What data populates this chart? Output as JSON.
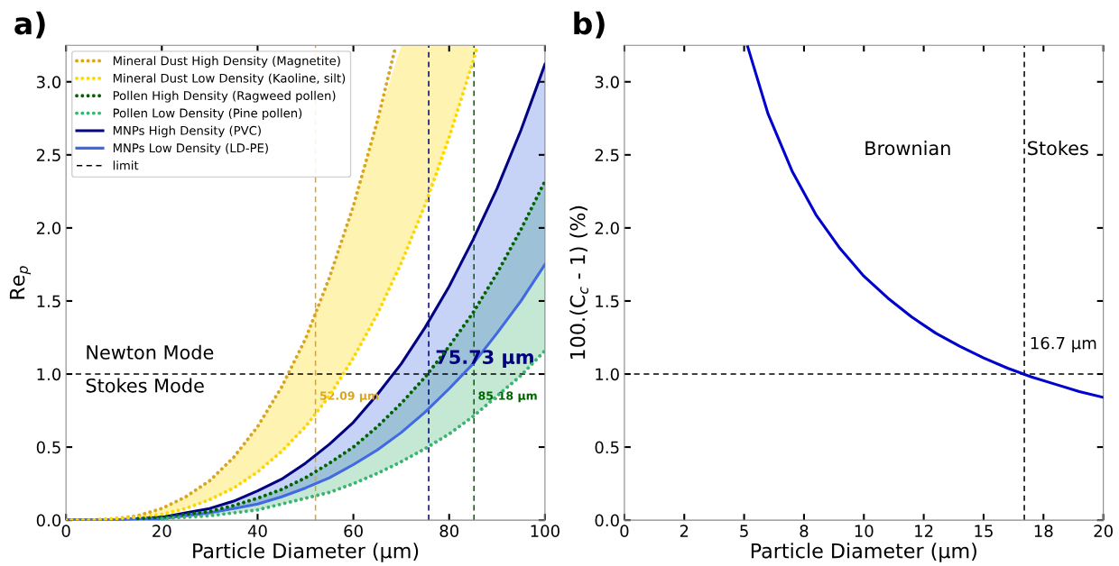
{
  "chart_data": [
    {
      "type": "line",
      "title": "a)",
      "xlabel": "Particle Diameter (μm)",
      "ylabel": "Re$_{p}$",
      "xlim": [
        0,
        100
      ],
      "ylim": [
        0,
        3.25
      ],
      "xticks": [
        0,
        20,
        40,
        60,
        80,
        100
      ],
      "yticks": [
        {
          "value": 0,
          "label": "0.0"
        },
        {
          "value": 0.5,
          "label": "0.5"
        },
        {
          "value": 1,
          "label": "1.0"
        },
        {
          "value": 1.5,
          "label": "1.5"
        },
        {
          "value": 2,
          "label": "2.0"
        },
        {
          "value": 2.5,
          "label": "2.5"
        },
        {
          "value": 3,
          "label": "3.0"
        }
      ],
      "legend": "top left",
      "series": [
        {
          "name": "Mineral Dust High Density (Magnetite)",
          "color": "#daa520",
          "line_style": "dotted",
          "x": [
            0,
            5,
            10,
            15,
            20,
            25,
            30,
            35,
            40,
            45,
            50,
            55,
            60,
            65,
            68.8
          ],
          "values": [
            0,
            0,
            0.01,
            0.03,
            0.08,
            0.16,
            0.27,
            0.43,
            0.64,
            0.91,
            1.24,
            1.66,
            2.15,
            2.73,
            3.24
          ]
        },
        {
          "name": "Mineral Dust Low Density (Kaoline, silt)",
          "color": "#ffd700",
          "line_style": "dotted",
          "x": [
            0,
            5,
            10,
            15,
            20,
            25,
            30,
            35,
            40,
            45,
            50,
            55,
            60,
            65,
            70,
            75,
            80,
            85,
            85.7
          ],
          "values": [
            0,
            0,
            0.01,
            0.02,
            0.04,
            0.08,
            0.14,
            0.22,
            0.33,
            0.47,
            0.64,
            0.85,
            1.11,
            1.41,
            1.76,
            2.16,
            2.62,
            3.14,
            3.22
          ],
          "lower": [
            0,
            0,
            0.01,
            0.02,
            0.04,
            0.08,
            0.14,
            0.22,
            0.33,
            0.47,
            0.64,
            0.85,
            1.11,
            1.41,
            1.76,
            2.16,
            2.62,
            3.14,
            3.22
          ],
          "upper": [
            0,
            0,
            0.01,
            0.03,
            0.08,
            0.16,
            0.27,
            0.43,
            0.64,
            0.91,
            1.24,
            1.66,
            2.15,
            2.73,
            3.25,
            3.25,
            3.25,
            3.25,
            3.25
          ]
        },
        {
          "name": "Pollen High Density (Ragweed pollen)",
          "color": "#006400",
          "line_style": "dotted",
          "x": [
            15,
            20,
            25,
            30,
            35,
            40,
            45,
            50,
            55,
            60,
            65,
            70,
            75,
            80,
            85,
            90,
            95,
            100
          ],
          "values": [
            0.01,
            0.02,
            0.04,
            0.06,
            0.1,
            0.15,
            0.21,
            0.29,
            0.39,
            0.5,
            0.64,
            0.8,
            0.98,
            1.19,
            1.42,
            1.69,
            1.99,
            2.32
          ]
        },
        {
          "name": "Pollen Low Density (Pine pollen)",
          "color": "#3cb371",
          "line_style": "dotted",
          "x": [
            20,
            25,
            30,
            35,
            40,
            45,
            50,
            55,
            60,
            65,
            70,
            75,
            80,
            85,
            90,
            95,
            100
          ],
          "values": [
            0.01,
            0.02,
            0.03,
            0.05,
            0.07,
            0.11,
            0.15,
            0.19,
            0.25,
            0.32,
            0.4,
            0.49,
            0.59,
            0.71,
            0.85,
            0.99,
            1.16
          ],
          "lower": [
            0.01,
            0.02,
            0.03,
            0.05,
            0.07,
            0.11,
            0.15,
            0.19,
            0.25,
            0.32,
            0.4,
            0.49,
            0.59,
            0.71,
            0.85,
            0.99,
            1.16
          ],
          "upper": [
            0.02,
            0.04,
            0.06,
            0.1,
            0.15,
            0.21,
            0.29,
            0.39,
            0.5,
            0.64,
            0.8,
            0.98,
            1.19,
            1.42,
            1.69,
            1.99,
            2.32
          ]
        },
        {
          "name": "MNPs High Density (PVC)",
          "color": "#000080",
          "line_style": "solid",
          "x": [
            0,
            5,
            10,
            15,
            20,
            25,
            30,
            35,
            40,
            45,
            50,
            55,
            60,
            65,
            70,
            75,
            80,
            85,
            90,
            95,
            100
          ],
          "values": [
            0,
            0,
            0,
            0.01,
            0.02,
            0.05,
            0.08,
            0.13,
            0.2,
            0.28,
            0.39,
            0.52,
            0.67,
            0.86,
            1.07,
            1.32,
            1.6,
            1.92,
            2.27,
            2.67,
            3.12
          ]
        },
        {
          "name": "MNPs Low Density (LD-PE)",
          "color": "#4169e1",
          "line_style": "solid",
          "x": [
            0,
            5,
            10,
            15,
            20,
            25,
            30,
            35,
            40,
            45,
            50,
            55,
            60,
            65,
            70,
            75,
            80,
            85,
            90,
            95,
            100
          ],
          "values": [
            0,
            0,
            0,
            0.01,
            0.01,
            0.03,
            0.05,
            0.08,
            0.11,
            0.16,
            0.22,
            0.29,
            0.38,
            0.48,
            0.6,
            0.74,
            0.9,
            1.07,
            1.28,
            1.5,
            1.75
          ],
          "lower": [
            0,
            0,
            0,
            0.01,
            0.01,
            0.03,
            0.05,
            0.08,
            0.11,
            0.16,
            0.22,
            0.29,
            0.38,
            0.48,
            0.6,
            0.74,
            0.9,
            1.07,
            1.28,
            1.5,
            1.75
          ],
          "upper": [
            0,
            0,
            0,
            0.01,
            0.02,
            0.05,
            0.08,
            0.13,
            0.2,
            0.28,
            0.39,
            0.52,
            0.67,
            0.86,
            1.07,
            1.32,
            1.6,
            1.92,
            2.27,
            2.67,
            3.12
          ]
        }
      ],
      "ref_lines": [
        {
          "axis": "y",
          "value": 1.0,
          "label": "limit",
          "color": "#000000",
          "line_style": "dashed"
        },
        {
          "axis": "x",
          "value": 52.09,
          "label": "52.09 μm",
          "color": "#daa520",
          "line_style": "dashed"
        },
        {
          "axis": "x",
          "value": 75.73,
          "label": "75.73 μm",
          "color": "#000080",
          "line_style": "dashed"
        },
        {
          "axis": "x",
          "value": 85.18,
          "label": "85.18 μm",
          "color": "#006400",
          "line_style": "dashed"
        }
      ],
      "annotations": [
        "Newton Mode",
        "Stokes Mode"
      ]
    },
    {
      "type": "line",
      "title": "b)",
      "xlabel": "Particle Diameter (μm)",
      "ylabel": "100.(C$_{c}$ - 1) (%)",
      "xlim": [
        0,
        20
      ],
      "ylim": [
        0,
        3.25
      ],
      "xticks": [
        0,
        {
          "value": 2.5,
          "label": "2"
        },
        5,
        {
          "value": 7.5,
          "label": "8"
        },
        10,
        {
          "value": 12.5,
          "label": "12"
        },
        15,
        {
          "value": 17.5,
          "label": "18"
        },
        20
      ],
      "yticks": [
        {
          "value": 0,
          "label": "0.0"
        },
        {
          "value": 0.5,
          "label": "0.5"
        },
        {
          "value": 1,
          "label": "1.0"
        },
        {
          "value": 1.5,
          "label": "1.5"
        },
        {
          "value": 2,
          "label": "2.0"
        },
        {
          "value": 2.5,
          "label": "2.5"
        },
        {
          "value": 3,
          "label": "3.0"
        }
      ],
      "series": [
        {
          "color": "#0000cd",
          "line_style": "solid",
          "x": [
            5.15,
            6,
            7,
            8,
            9,
            10,
            11,
            12,
            13,
            14,
            15,
            16,
            17,
            18,
            19,
            20
          ],
          "values": [
            3.24,
            2.78,
            2.39,
            2.09,
            1.86,
            1.67,
            1.52,
            1.39,
            1.28,
            1.19,
            1.11,
            1.04,
            0.98,
            0.93,
            0.88,
            0.84
          ]
        }
      ],
      "ref_lines": [
        {
          "axis": "y",
          "value": 1.0,
          "color": "#000000",
          "line_style": "dashed"
        },
        {
          "axis": "x",
          "value": 16.7,
          "label": "16.7 μm",
          "color": "#000000",
          "line_style": "dashed"
        }
      ],
      "annotations": [
        "Brownian",
        "Stokes"
      ]
    }
  ]
}
